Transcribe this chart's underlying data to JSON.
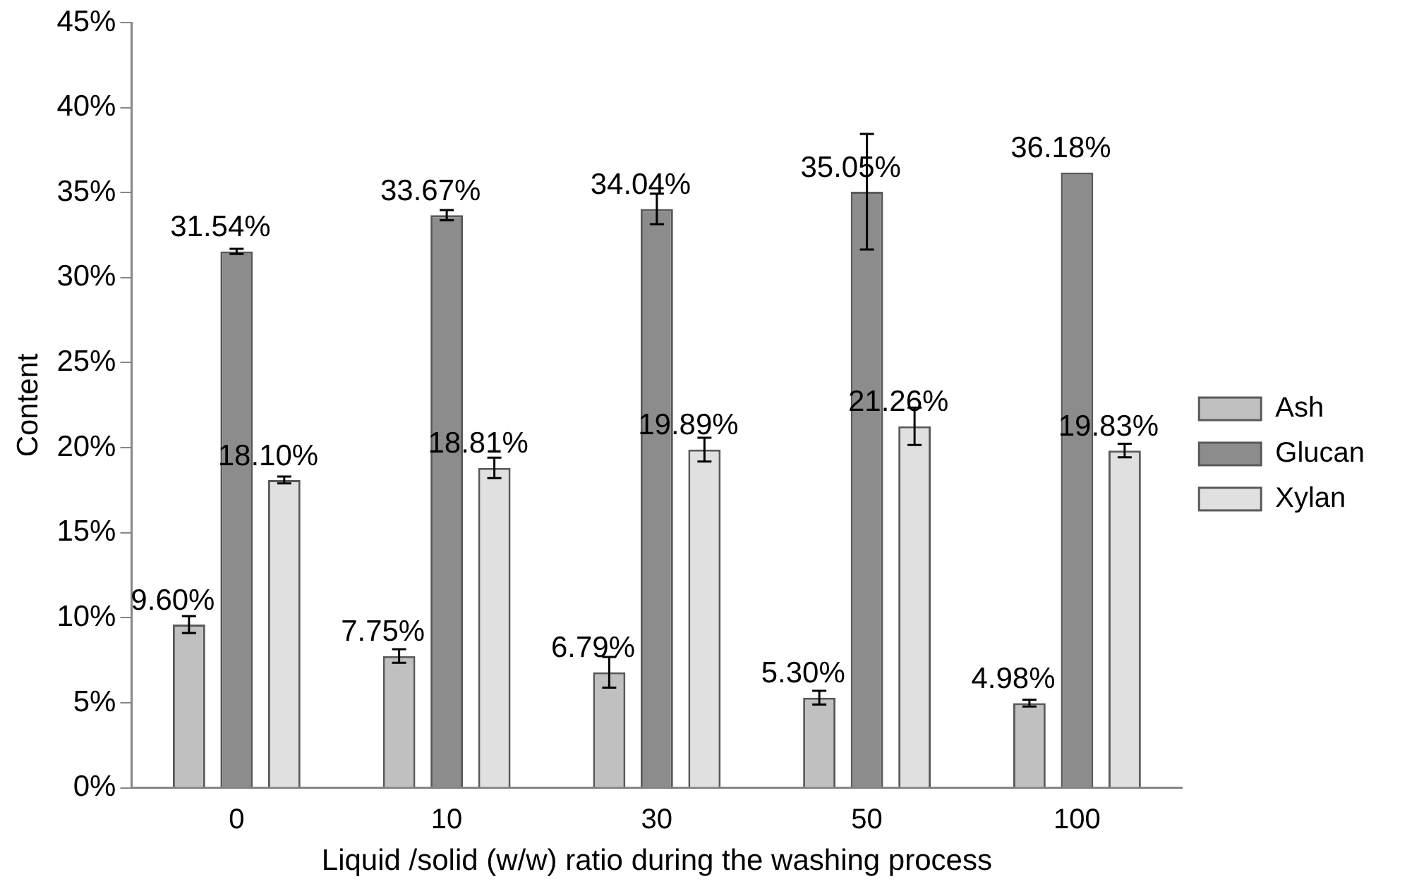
{
  "chart_data": {
    "type": "bar",
    "xlabel": "Liquid /solid (w/w) ratio during the washing process",
    "ylabel": "Content",
    "categories": [
      "0",
      "10",
      "30",
      "50",
      "100"
    ],
    "series": [
      {
        "name": "Ash",
        "color": "#c0c0c0",
        "values": [
          9.6,
          7.75,
          6.79,
          5.3,
          4.98
        ],
        "value_labels": [
          "9.60%",
          "7.75%",
          "6.79%",
          "5.30%",
          "4.98%"
        ],
        "errors": [
          0.5,
          0.4,
          0.9,
          0.4,
          0.2
        ]
      },
      {
        "name": "Glucan",
        "color": "#8c8c8c",
        "values": [
          31.54,
          33.67,
          34.04,
          35.05,
          36.18
        ],
        "value_labels": [
          "31.54%",
          "33.67%",
          "34.04%",
          "35.05%",
          "36.18%"
        ],
        "errors": [
          0.15,
          0.3,
          0.9,
          3.4,
          null
        ]
      },
      {
        "name": "Xylan",
        "color": "#e0e0e0",
        "values": [
          18.1,
          18.81,
          19.89,
          21.26,
          19.83
        ],
        "value_labels": [
          "18.10%",
          "18.81%",
          "19.89%",
          "21.26%",
          "19.83%"
        ],
        "errors": [
          0.2,
          0.6,
          0.7,
          1.1,
          0.4
        ]
      }
    ],
    "ylim": [
      0,
      45
    ],
    "yticks": [
      {
        "value": 0,
        "label": "0%"
      },
      {
        "value": 5,
        "label": "5%"
      },
      {
        "value": 10,
        "label": "10%"
      },
      {
        "value": 15,
        "label": "15%"
      },
      {
        "value": 20,
        "label": "20%"
      },
      {
        "value": 25,
        "label": "25%"
      },
      {
        "value": 30,
        "label": "30%"
      },
      {
        "value": 35,
        "label": "35%"
      },
      {
        "value": 40,
        "label": "40%"
      },
      {
        "value": 45,
        "label": "45%"
      }
    ],
    "grid": false,
    "legend": "right"
  }
}
